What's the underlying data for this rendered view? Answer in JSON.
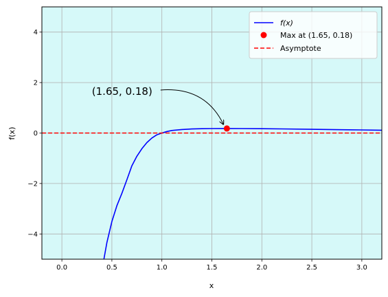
{
  "chart_data": {
    "type": "line",
    "xlabel": "x",
    "ylabel": "f(x)",
    "xlim": [
      -0.2,
      3.2
    ],
    "ylim": [
      -5,
      5
    ],
    "x_ticks": [
      0.0,
      0.5,
      1.0,
      1.5,
      2.0,
      2.5,
      3.0
    ],
    "x_tick_labels": [
      "0.0",
      "0.5",
      "1.0",
      "1.5",
      "2.0",
      "2.5",
      "3.0"
    ],
    "y_ticks": [
      -4,
      -2,
      0,
      2,
      4
    ],
    "y_tick_labels": [
      "−4",
      "−2",
      "0",
      "2",
      "4"
    ],
    "grid": true,
    "background_color": "#d6f9f9",
    "legend_position": "top-right",
    "series": [
      {
        "name": "f(x)",
        "kind": "line",
        "color": "#0000ff",
        "points": [
          [
            0.42,
            -5.0
          ],
          [
            0.45,
            -4.35
          ],
          [
            0.5,
            -3.51
          ],
          [
            0.55,
            -2.88
          ],
          [
            0.6,
            -2.39
          ],
          [
            0.65,
            -1.85
          ],
          [
            0.7,
            -1.3
          ],
          [
            0.75,
            -0.92
          ],
          [
            0.8,
            -0.62
          ],
          [
            0.85,
            -0.38
          ],
          [
            0.9,
            -0.2
          ],
          [
            0.95,
            -0.07
          ],
          [
            1.0,
            0.0
          ],
          [
            1.05,
            0.06
          ],
          [
            1.1,
            0.1
          ],
          [
            1.2,
            0.14
          ],
          [
            1.3,
            0.16
          ],
          [
            1.4,
            0.172
          ],
          [
            1.5,
            0.178
          ],
          [
            1.65,
            0.18
          ],
          [
            1.8,
            0.178
          ],
          [
            2.0,
            0.173
          ],
          [
            2.2,
            0.163
          ],
          [
            2.5,
            0.147
          ],
          [
            2.8,
            0.132
          ],
          [
            3.0,
            0.122
          ],
          [
            3.2,
            0.113
          ]
        ]
      },
      {
        "name": "Max at (1.65, 0.18)",
        "kind": "marker",
        "color": "#ff0000",
        "points": [
          [
            1.65,
            0.18
          ]
        ]
      },
      {
        "name": "Asymptote",
        "kind": "hline",
        "color": "#ff0000",
        "y": 0
      }
    ],
    "annotation": {
      "text": "(1.65, 0.18)",
      "point": [
        1.65,
        0.18
      ],
      "text_position": [
        0.3,
        1.65
      ]
    }
  }
}
